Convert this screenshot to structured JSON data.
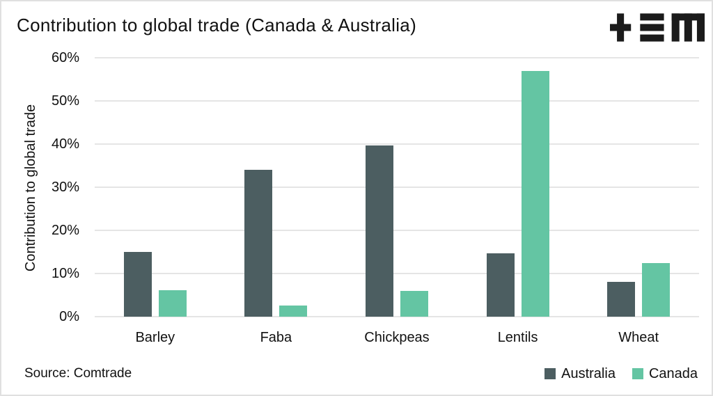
{
  "header": {
    "title": "Contribution to global trade (Canada & Australia)",
    "logo_icon": "tem-plus-bars-m-logo"
  },
  "source_note": "Source: Comtrade",
  "chart_data": {
    "type": "bar",
    "title": "Contribution to global trade (Canada & Australia)",
    "xlabel": "",
    "ylabel": "Contribution to global trade",
    "categories": [
      "Barley",
      "Faba",
      "Chickpeas",
      "Lentils",
      "Wheat"
    ],
    "series": [
      {
        "name": "Australia",
        "color": "#4c5e61",
        "values": [
          15.0,
          34.0,
          39.7,
          14.7,
          8.0
        ]
      },
      {
        "name": "Canada",
        "color": "#64c5a3",
        "values": [
          6.2,
          2.6,
          6.0,
          56.9,
          12.4
        ]
      }
    ],
    "ylim": [
      0,
      60
    ],
    "ytick_labels": [
      "0%",
      "10%",
      "20%",
      "30%",
      "40%",
      "50%",
      "60%"
    ],
    "grid": true,
    "legend_position": "bottom-right"
  },
  "legend": {
    "items": [
      {
        "label": "Australia",
        "color": "#4c5e61"
      },
      {
        "label": "Canada",
        "color": "#64c5a3"
      }
    ]
  },
  "colors": {
    "grid": "#e5e5e5",
    "text": "#111111",
    "background": "#ffffff",
    "border": "#e0e0e0",
    "logo": "#1b1b1b"
  }
}
